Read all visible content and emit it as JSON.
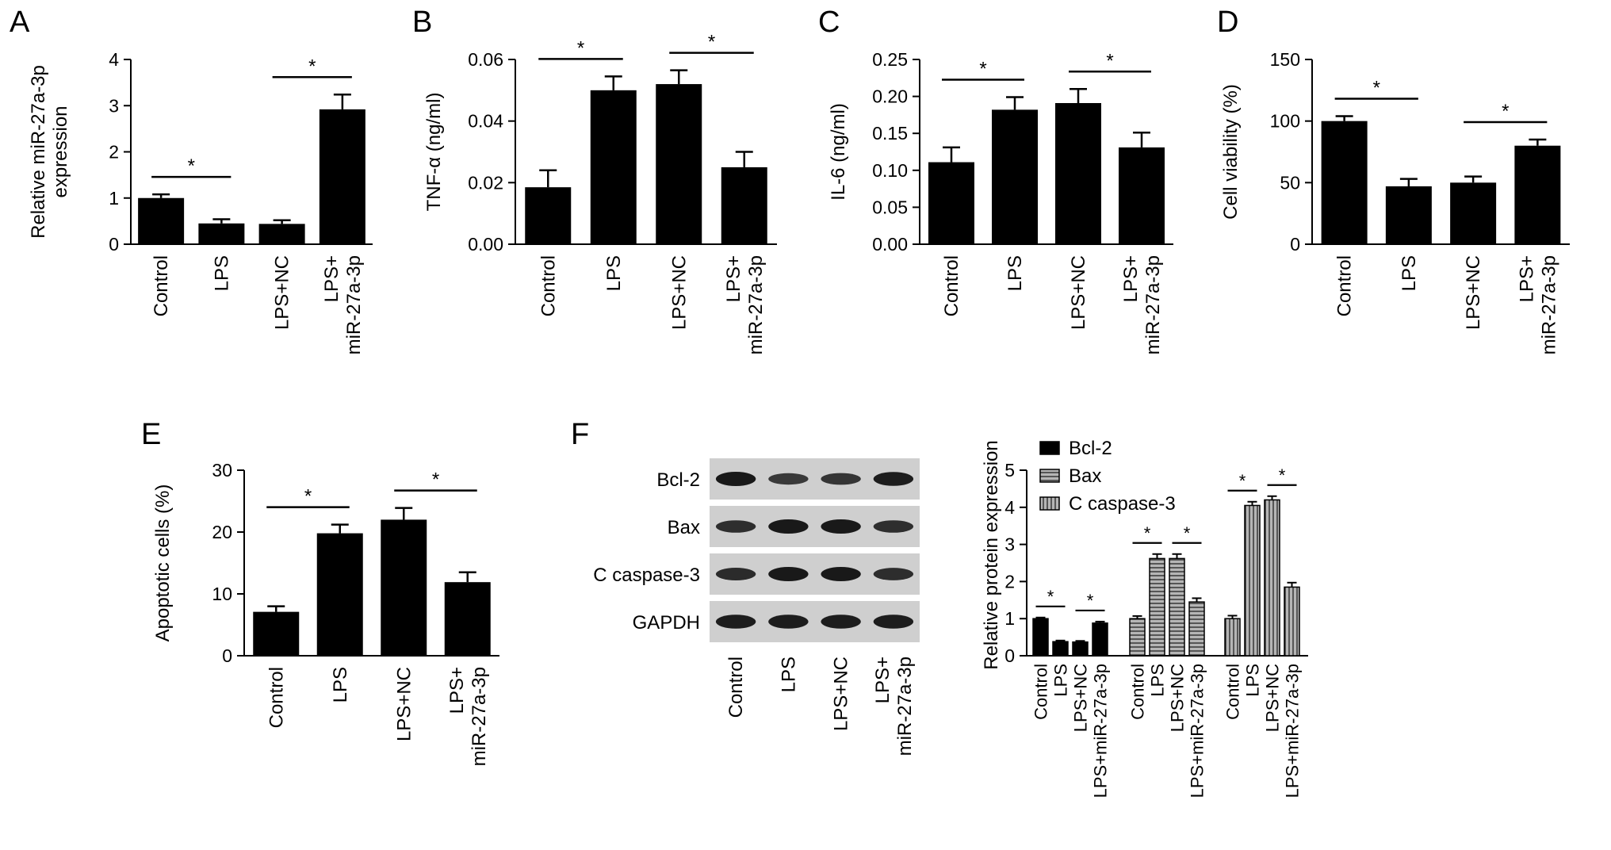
{
  "panels": [
    {
      "letter": "A",
      "chart_data": {
        "type": "bar",
        "categories": [
          "Control",
          "LPS",
          "LPS+NC",
          "LPS+\nmiR-27a-3p"
        ],
        "values": [
          1.0,
          0.45,
          0.44,
          2.92
        ],
        "errors": [
          0.08,
          0.09,
          0.08,
          0.32
        ],
        "ylabel": "Relative miR-27a-3p\nexpression",
        "ylim": [
          0,
          4
        ],
        "yticks": [
          "0",
          "1",
          "2",
          "3",
          "4"
        ],
        "significance": [
          {
            "pair": [
              0,
              1
            ],
            "label": "*"
          },
          {
            "pair": [
              2,
              3
            ],
            "label": "*"
          }
        ]
      }
    },
    {
      "letter": "B",
      "chart_data": {
        "type": "bar",
        "categories": [
          "Control",
          "LPS",
          "LPS+NC",
          "LPS+\nmiR-27a-3p"
        ],
        "values": [
          0.0185,
          0.05,
          0.052,
          0.025
        ],
        "errors": [
          0.0055,
          0.0045,
          0.0045,
          0.005
        ],
        "ylabel": "TNF-α (ng/ml)",
        "ylim": [
          0,
          0.06
        ],
        "yticks": [
          "0.00",
          "0.02",
          "0.04",
          "0.06"
        ],
        "significance": [
          {
            "pair": [
              0,
              1
            ],
            "label": "*"
          },
          {
            "pair": [
              2,
              3
            ],
            "label": "*"
          }
        ]
      }
    },
    {
      "letter": "C",
      "chart_data": {
        "type": "bar",
        "categories": [
          "Control",
          "LPS",
          "LPS+NC",
          "LPS+\nmiR-27a-3p"
        ],
        "values": [
          0.111,
          0.182,
          0.191,
          0.131
        ],
        "errors": [
          0.02,
          0.017,
          0.019,
          0.02
        ],
        "ylabel": "IL-6 (ng/ml)",
        "ylim": [
          0,
          0.25
        ],
        "yticks": [
          "0.00",
          "0.05",
          "0.10",
          "0.15",
          "0.20",
          "0.25"
        ],
        "significance": [
          {
            "pair": [
              0,
              1
            ],
            "label": "*"
          },
          {
            "pair": [
              2,
              3
            ],
            "label": "*"
          }
        ]
      }
    },
    {
      "letter": "D",
      "chart_data": {
        "type": "bar",
        "categories": [
          "Control",
          "LPS",
          "LPS+NC",
          "LPS+\nmiR-27a-3p"
        ],
        "values": [
          100,
          47,
          50,
          80
        ],
        "errors": [
          4,
          6,
          5,
          5
        ],
        "ylabel": "Cell viability (%)",
        "ylim": [
          0,
          150
        ],
        "yticks": [
          "0",
          "50",
          "100",
          "150"
        ],
        "significance": [
          {
            "pair": [
              0,
              1
            ],
            "label": "*"
          },
          {
            "pair": [
              2,
              3
            ],
            "label": "*"
          }
        ]
      }
    },
    {
      "letter": "E",
      "chart_data": {
        "type": "bar",
        "categories": [
          "Control",
          "LPS",
          "LPS+NC",
          "LPS+\nmiR-27a-3p"
        ],
        "values": [
          7.1,
          19.8,
          22.0,
          11.9
        ],
        "errors": [
          0.9,
          1.4,
          1.9,
          1.6
        ],
        "ylabel": "Apoptotic cells (%)",
        "ylim": [
          0,
          30
        ],
        "yticks": [
          "0",
          "10",
          "20",
          "30"
        ],
        "significance": [
          {
            "pair": [
              0,
              1
            ],
            "label": "*"
          },
          {
            "pair": [
              2,
              3
            ],
            "label": "*"
          }
        ]
      }
    }
  ],
  "western": {
    "letter": "F",
    "rows": [
      "Bcl-2",
      "Bax",
      "C caspase-3",
      "GAPDH"
    ],
    "lanes": [
      "Control",
      "LPS",
      "LPS+NC",
      "LPS+\nmiR-27a-3p"
    ],
    "intensity": [
      [
        1.0,
        0.55,
        0.6,
        0.95
      ],
      [
        0.7,
        1.0,
        1.0,
        0.7
      ],
      [
        0.75,
        1.0,
        1.0,
        0.72
      ],
      [
        0.95,
        0.95,
        0.95,
        0.95
      ]
    ]
  },
  "grouped_chart": {
    "chart_data": {
      "type": "bar",
      "ylabel": "Relative protein expression",
      "ylim": [
        0,
        5
      ],
      "yticks": [
        "0",
        "1",
        "2",
        "3",
        "4",
        "5"
      ],
      "categories": [
        "Control",
        "LPS",
        "LPS+NC",
        "LPS+miR-27a-3p"
      ],
      "series": [
        {
          "name": "Bcl-2",
          "values": [
            1.0,
            0.38,
            0.37,
            0.88
          ],
          "errors": [
            0.03,
            0.03,
            0.03,
            0.04
          ]
        },
        {
          "name": "Bax",
          "values": [
            1.0,
            2.62,
            2.62,
            1.45
          ],
          "errors": [
            0.07,
            0.12,
            0.12,
            0.1
          ]
        },
        {
          "name": "C caspase-3",
          "values": [
            1.0,
            4.05,
            4.2,
            1.85
          ],
          "errors": [
            0.08,
            0.1,
            0.1,
            0.12
          ]
        }
      ],
      "significance": [
        {
          "series": 0,
          "pair": [
            0,
            1
          ],
          "label": "*"
        },
        {
          "series": 0,
          "pair": [
            2,
            3
          ],
          "label": "*"
        },
        {
          "series": 1,
          "pair": [
            0,
            1
          ],
          "label": "*"
        },
        {
          "series": 1,
          "pair": [
            2,
            3
          ],
          "label": "*"
        },
        {
          "series": 2,
          "pair": [
            0,
            1
          ],
          "label": "*"
        },
        {
          "series": 2,
          "pair": [
            2,
            3
          ],
          "label": "*"
        }
      ],
      "legend_position": "top-left",
      "colors": {
        "bar": "#000000",
        "hatch_bg": "#aaaaaa"
      }
    }
  }
}
